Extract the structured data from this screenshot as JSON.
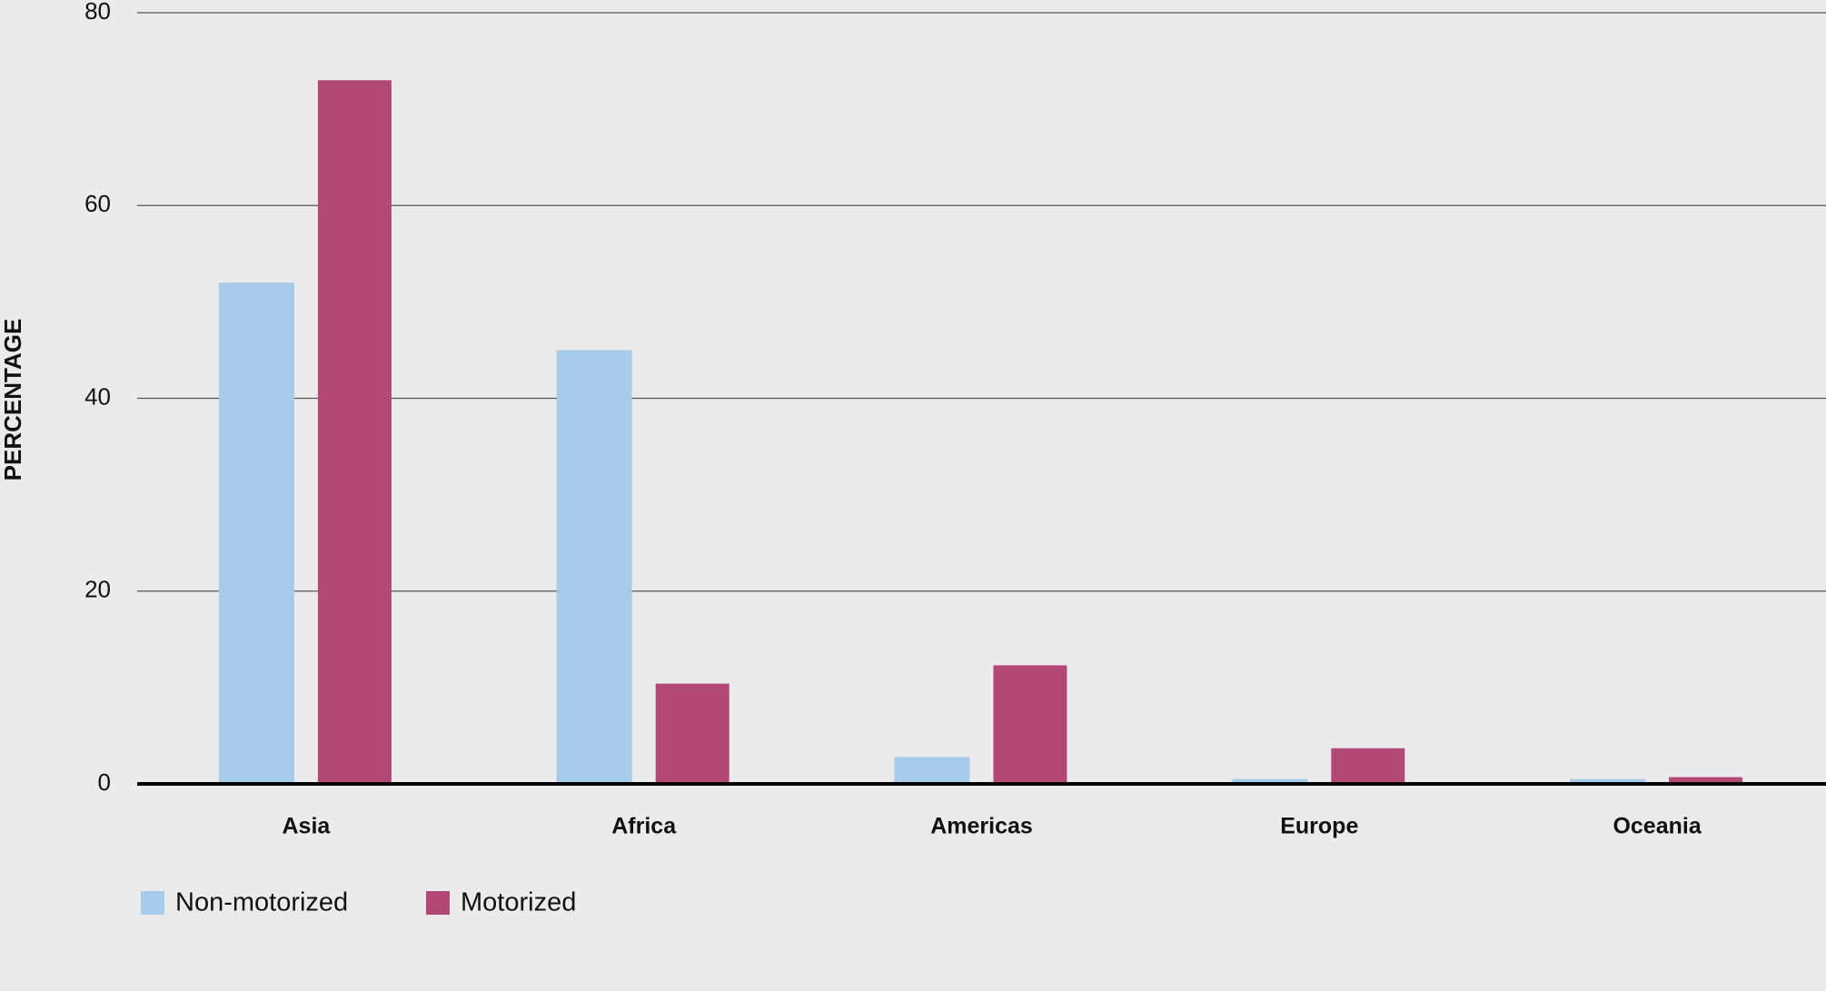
{
  "chart_data": {
    "type": "bar",
    "y_label": "PERCENTAGE",
    "categories": [
      "Asia",
      "Africa",
      "Americas",
      "Europe",
      "Oceania"
    ],
    "series": [
      {
        "name": "Non-motorized",
        "color": "#a7cbea",
        "values": [
          52,
          45,
          2.8,
          0.5,
          0.5
        ]
      },
      {
        "name": "Motorized",
        "color": "#b24874",
        "values": [
          73,
          10.4,
          12.3,
          3.7,
          0.7
        ]
      }
    ],
    "ylim": [
      0,
      80
    ],
    "yticks": [
      0,
      20,
      40,
      60,
      80
    ],
    "grid": true
  }
}
